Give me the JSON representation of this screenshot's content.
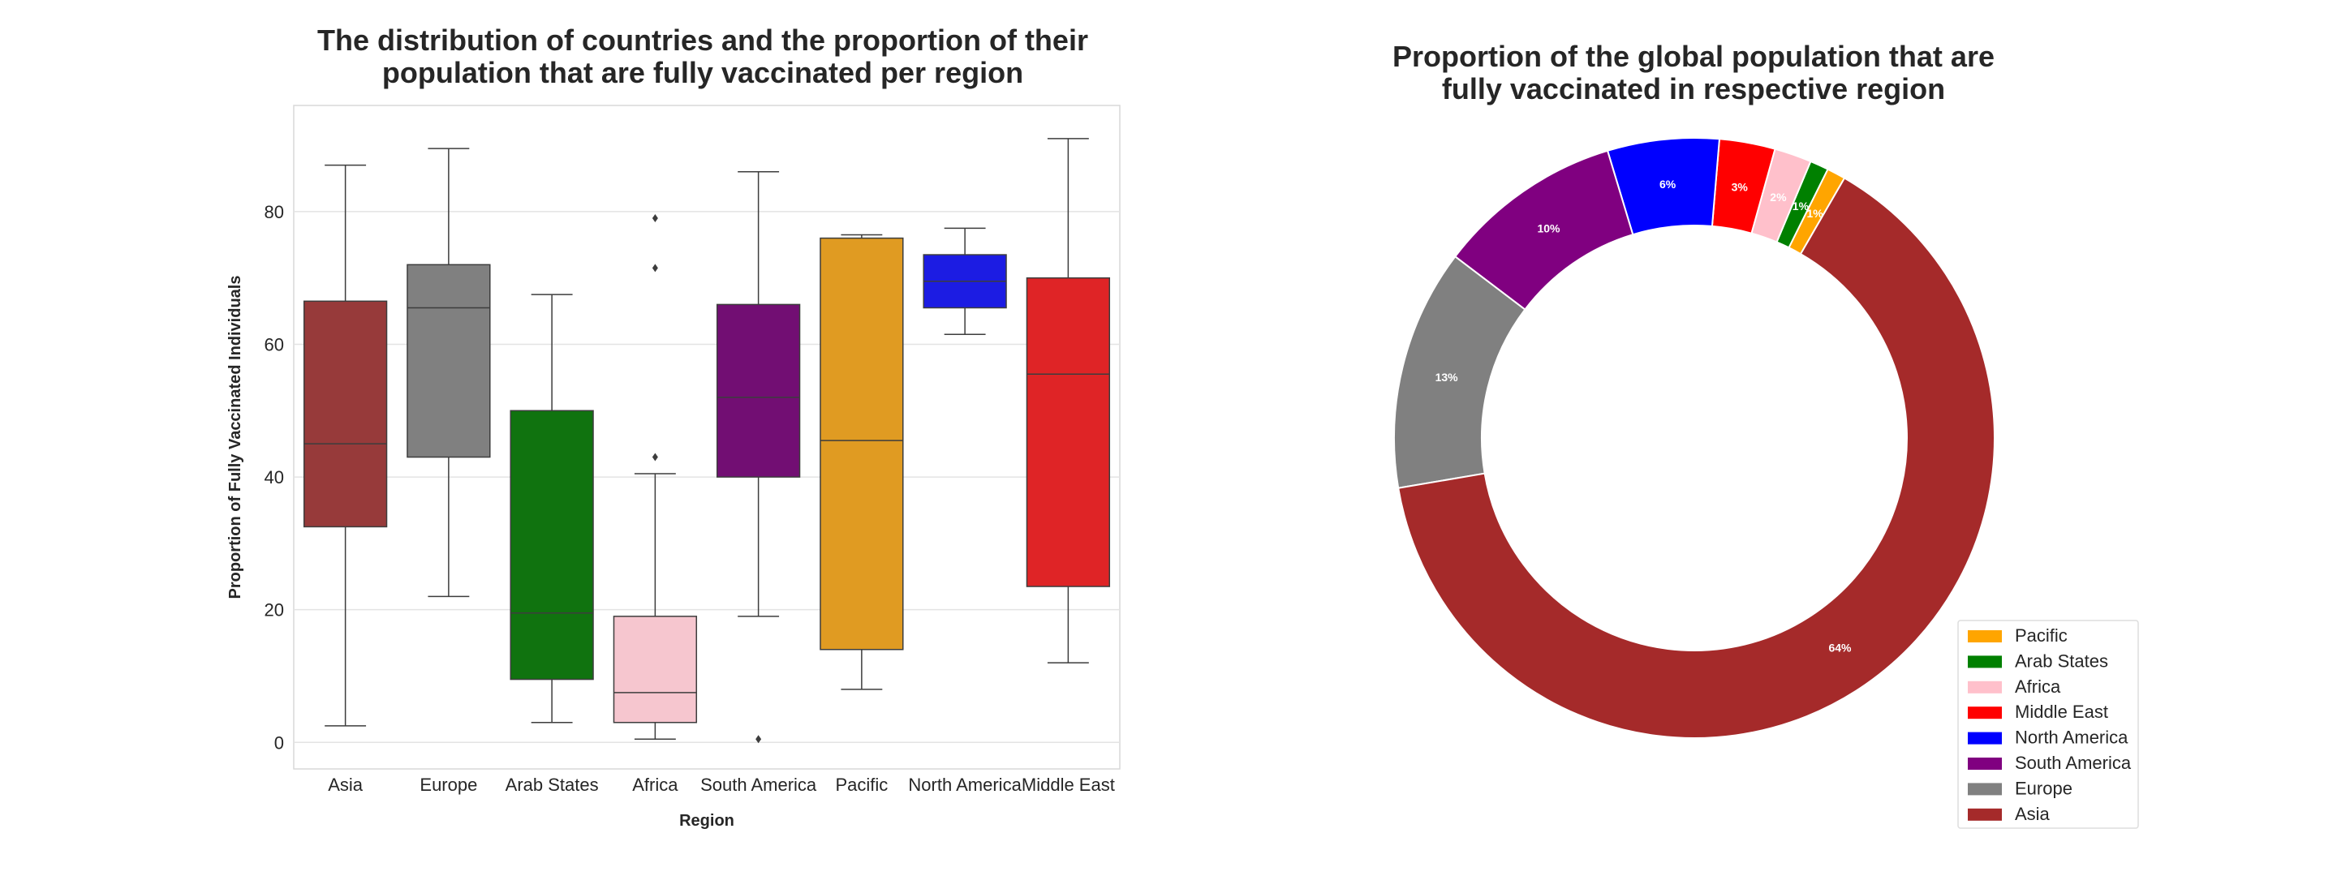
{
  "chart_data": [
    {
      "type": "box",
      "title_lines": [
        "The distribution of countries and the proportion of their",
        "population that are fully vaccinated per region"
      ],
      "xlabel": "Region",
      "ylabel": "Proportion of Fully Vaccinated Individuals",
      "ylim": [
        -4,
        96
      ],
      "yticks": [
        0,
        20,
        40,
        60,
        80
      ],
      "grid": true,
      "categories": [
        "Asia",
        "Europe",
        "Arab States",
        "Africa",
        "South America",
        "Pacific",
        "North America",
        "Middle East"
      ],
      "boxes": [
        {
          "name": "Asia",
          "whislo": 2.5,
          "q1": 32.5,
          "med": 45,
          "q3": 66.5,
          "whishi": 87,
          "fliers": [],
          "color": "#973a3a"
        },
        {
          "name": "Europe",
          "whislo": 22,
          "q1": 43,
          "med": 65.5,
          "q3": 72,
          "whishi": 89.5,
          "fliers": [],
          "color": "#808080"
        },
        {
          "name": "Arab States",
          "whislo": 3,
          "q1": 9.5,
          "med": 19.5,
          "q3": 50,
          "whishi": 67.5,
          "fliers": [],
          "color": "#10730f"
        },
        {
          "name": "Africa",
          "whislo": 0.5,
          "q1": 3,
          "med": 7.5,
          "q3": 19,
          "whishi": 40.5,
          "fliers": [
            43,
            71.5,
            79
          ],
          "color": "#f6c6cf"
        },
        {
          "name": "South America",
          "whislo": 19,
          "q1": 40,
          "med": 52,
          "q3": 66,
          "whishi": 86,
          "fliers": [
            0.5
          ],
          "color": "#720e73"
        },
        {
          "name": "Pacific",
          "whislo": 8,
          "q1": 14,
          "med": 45.5,
          "q3": 76,
          "whishi": 76.5,
          "fliers": [],
          "color": "#e09b22"
        },
        {
          "name": "North America",
          "whislo": 61.5,
          "q1": 65.5,
          "med": 69.5,
          "q3": 73.5,
          "whishi": 77.5,
          "fliers": [],
          "color": "#1c1ce3"
        },
        {
          "name": "Middle East",
          "whislo": 12,
          "q1": 23.5,
          "med": 55.5,
          "q3": 70,
          "whishi": 91,
          "fliers": [],
          "color": "#df2426"
        }
      ]
    },
    {
      "type": "pie",
      "donut": true,
      "title_lines": [
        "Proportion of the global population that are",
        "fully vaccinated in respective region"
      ],
      "legend_position": "lower-right",
      "slices": [
        {
          "label": "Pacific",
          "value": 1,
          "pct_label": "1%",
          "color": "#ffa500"
        },
        {
          "label": "Arab States",
          "value": 1,
          "pct_label": "1%",
          "color": "#008000"
        },
        {
          "label": "Africa",
          "value": 2,
          "pct_label": "2%",
          "color": "#ffc0cb"
        },
        {
          "label": "Middle East",
          "value": 3,
          "pct_label": "3%",
          "color": "#ff0000"
        },
        {
          "label": "North America",
          "value": 6,
          "pct_label": "6%",
          "color": "#0000ff"
        },
        {
          "label": "South America",
          "value": 10,
          "pct_label": "10%",
          "color": "#800080"
        },
        {
          "label": "Europe",
          "value": 13,
          "pct_label": "13%",
          "color": "#808080"
        },
        {
          "label": "Asia",
          "value": 64,
          "pct_label": "64%",
          "color": "#a52a2a"
        }
      ]
    }
  ]
}
